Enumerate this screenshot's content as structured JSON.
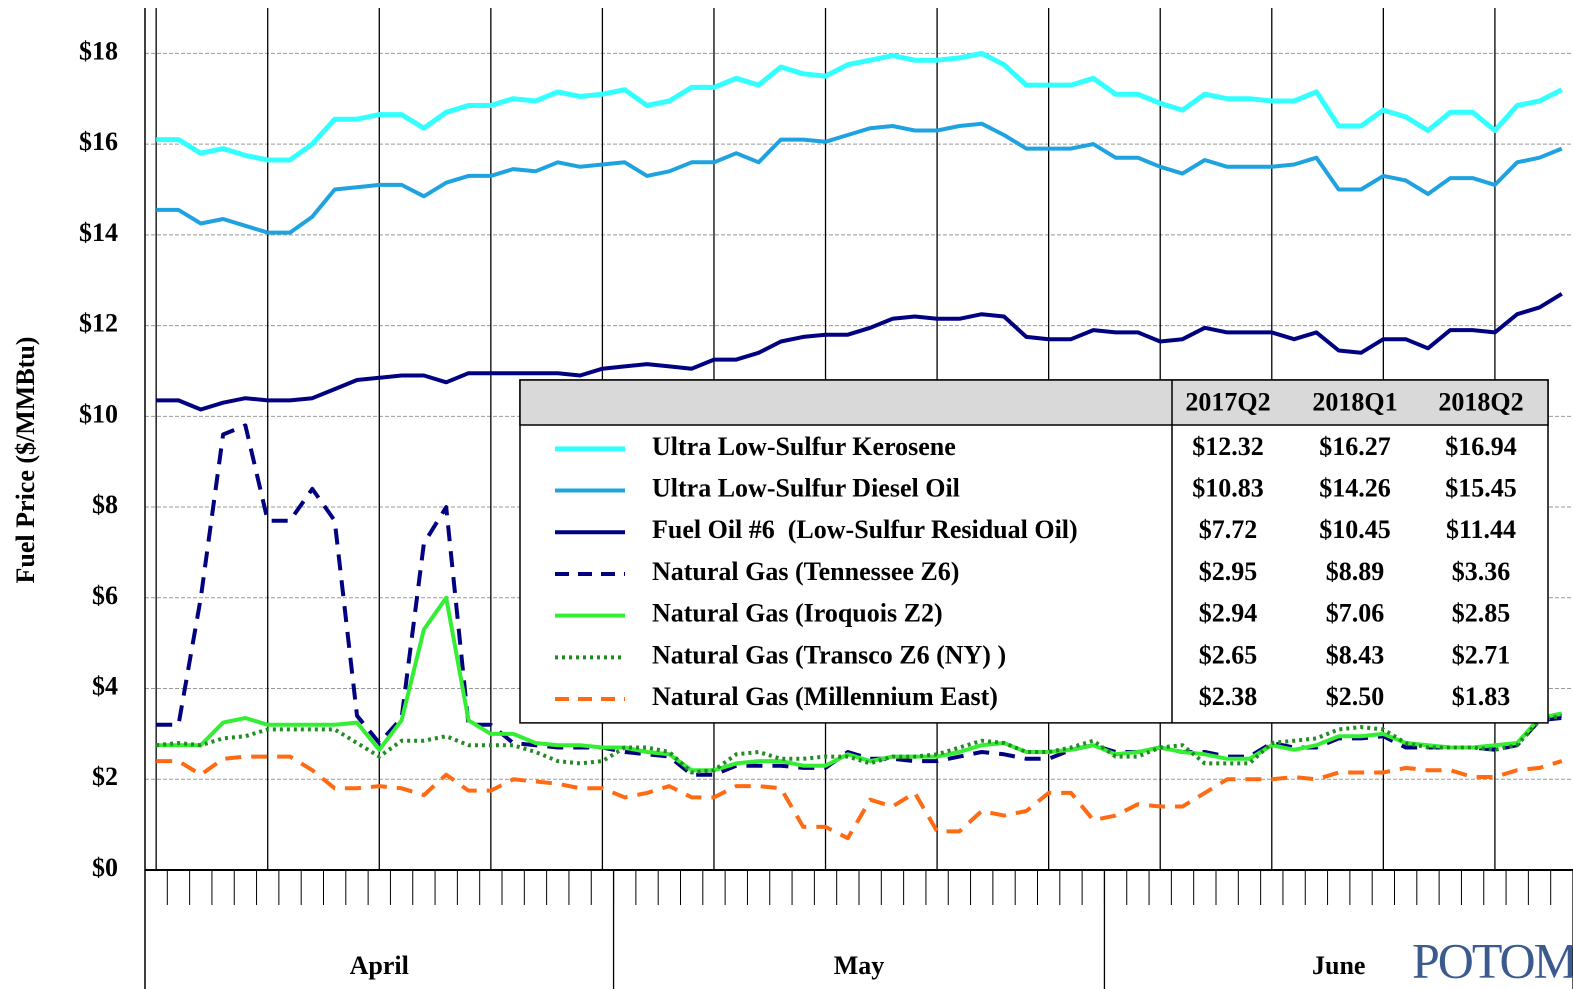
{
  "chart_data": {
    "type": "line",
    "y_label": "Fuel Price ($/MMBtu)",
    "categories": [
      null,
      null,
      null,
      null,
      null,
      null,
      null,
      null,
      null,
      null,
      null,
      null,
      null,
      null,
      null,
      null,
      null,
      null,
      null,
      null,
      null,
      null,
      null,
      null,
      null,
      null,
      null,
      null,
      null,
      null,
      null,
      null,
      null,
      null,
      null,
      null,
      null,
      null,
      null,
      null,
      null,
      null,
      null,
      null,
      null,
      null,
      null,
      null,
      null,
      null,
      null,
      null,
      null,
      null,
      null,
      null,
      null,
      null,
      null,
      null,
      null,
      null,
      null,
      null
    ],
    "month_groups": [
      {
        "label": "April",
        "days": 21
      },
      {
        "label": "May",
        "days": 22
      },
      {
        "label": "June",
        "days": 21
      }
    ],
    "ylim": [
      0,
      19
    ],
    "yticks": [
      {
        "value": 0,
        "label": "$0"
      },
      {
        "value": 2,
        "label": "$2"
      },
      {
        "value": 4,
        "label": "$4"
      },
      {
        "value": 6,
        "label": "$6"
      },
      {
        "value": 8,
        "label": "$8"
      },
      {
        "value": 10,
        "label": "$10"
      },
      {
        "value": 12,
        "label": "$12"
      },
      {
        "value": 14,
        "label": "$14"
      },
      {
        "value": 16,
        "label": "$16"
      },
      {
        "value": 18,
        "label": "$18"
      }
    ],
    "grid": true,
    "series": [
      {
        "name": "Ultra Low-Sulfur Kerosene",
        "color": "#33ffff",
        "line_style": "solid",
        "values": [
          16.1,
          16.1,
          15.8,
          15.9,
          15.75,
          15.65,
          15.65,
          16.0,
          16.55,
          16.55,
          16.65,
          16.65,
          16.35,
          16.7,
          16.85,
          16.85,
          17.0,
          16.95,
          17.15,
          17.05,
          17.1,
          17.2,
          16.85,
          16.95,
          17.25,
          17.25,
          17.45,
          17.3,
          17.7,
          17.55,
          17.5,
          17.75,
          17.85,
          17.95,
          17.85,
          17.85,
          17.9,
          18.0,
          17.75,
          17.3,
          17.3,
          17.3,
          17.45,
          17.1,
          17.1,
          16.9,
          16.75,
          17.1,
          17.0,
          17.0,
          16.95,
          16.95,
          17.15,
          16.4,
          16.4,
          16.75,
          16.6,
          16.3,
          16.7,
          16.7,
          16.3,
          16.85,
          16.95,
          17.2
        ]
      },
      {
        "name": "Ultra Low-Sulfur Diesel Oil",
        "color": "#1fa3e0",
        "line_style": "solid",
        "values": [
          14.55,
          14.55,
          14.25,
          14.35,
          14.2,
          14.05,
          14.05,
          14.4,
          15.0,
          15.05,
          15.1,
          15.1,
          14.85,
          15.15,
          15.3,
          15.3,
          15.45,
          15.4,
          15.6,
          15.5,
          15.55,
          15.6,
          15.3,
          15.4,
          15.6,
          15.6,
          15.8,
          15.6,
          16.1,
          16.1,
          16.05,
          16.2,
          16.35,
          16.4,
          16.3,
          16.3,
          16.4,
          16.45,
          16.2,
          15.9,
          15.9,
          15.9,
          16.0,
          15.7,
          15.7,
          15.5,
          15.35,
          15.65,
          15.5,
          15.5,
          15.5,
          15.55,
          15.7,
          15.0,
          15.0,
          15.3,
          15.2,
          14.9,
          15.25,
          15.25,
          15.1,
          15.6,
          15.7,
          15.9
        ]
      },
      {
        "name": "Fuel Oil #6  (Low-Sulfur Residual Oil)",
        "color": "#000080",
        "line_style": "solid",
        "values": [
          10.35,
          10.35,
          10.15,
          10.3,
          10.4,
          10.35,
          10.35,
          10.4,
          10.6,
          10.8,
          10.85,
          10.9,
          10.9,
          10.75,
          10.95,
          10.95,
          10.95,
          10.95,
          10.95,
          10.9,
          11.05,
          11.1,
          11.15,
          11.1,
          11.05,
          11.25,
          11.25,
          11.4,
          11.65,
          11.75,
          11.8,
          11.8,
          11.95,
          12.15,
          12.2,
          12.15,
          12.15,
          12.25,
          12.2,
          11.75,
          11.7,
          11.7,
          11.9,
          11.85,
          11.85,
          11.65,
          11.7,
          11.95,
          11.85,
          11.85,
          11.85,
          11.7,
          11.85,
          11.45,
          11.4,
          11.7,
          11.7,
          11.5,
          11.9,
          11.9,
          11.85,
          12.25,
          12.4,
          12.7
        ]
      },
      {
        "name": "Natural Gas (Tennessee Z6)",
        "color": "#000080",
        "line_style": "dashed",
        "values": [
          3.2,
          3.2,
          6.0,
          9.6,
          9.8,
          7.7,
          7.7,
          8.4,
          7.7,
          3.4,
          2.8,
          3.35,
          7.2,
          8.0,
          3.2,
          3.2,
          2.8,
          2.75,
          2.7,
          2.7,
          2.7,
          2.6,
          2.55,
          2.5,
          2.1,
          2.1,
          2.3,
          2.3,
          2.3,
          2.25,
          2.25,
          2.6,
          2.45,
          2.45,
          2.4,
          2.4,
          2.5,
          2.6,
          2.55,
          2.45,
          2.45,
          2.65,
          2.75,
          2.6,
          2.6,
          2.7,
          2.6,
          2.6,
          2.5,
          2.5,
          2.8,
          2.7,
          2.7,
          2.9,
          2.9,
          2.95,
          2.7,
          2.7,
          2.7,
          2.7,
          2.65,
          2.75,
          3.3,
          3.35
        ]
      },
      {
        "name": "Natural Gas (Iroquois Z2)",
        "color": "#33ee33",
        "line_style": "solid",
        "values": [
          2.75,
          2.75,
          2.75,
          3.25,
          3.35,
          3.2,
          3.2,
          3.2,
          3.2,
          3.25,
          2.65,
          3.3,
          5.3,
          6.0,
          3.3,
          3.0,
          3.0,
          2.8,
          2.75,
          2.75,
          2.7,
          2.7,
          2.6,
          2.55,
          2.2,
          2.2,
          2.35,
          2.4,
          2.4,
          2.3,
          2.3,
          2.55,
          2.4,
          2.5,
          2.5,
          2.5,
          2.6,
          2.75,
          2.8,
          2.6,
          2.6,
          2.65,
          2.75,
          2.55,
          2.6,
          2.7,
          2.6,
          2.55,
          2.45,
          2.45,
          2.75,
          2.65,
          2.75,
          2.95,
          2.95,
          3.0,
          2.8,
          2.75,
          2.7,
          2.7,
          2.75,
          2.8,
          3.35,
          3.45
        ]
      },
      {
        "name": "Natural Gas (Transco Z6 (NY) )",
        "color": "#228b22",
        "line_style": "dotted",
        "values": [
          2.75,
          2.8,
          2.75,
          2.9,
          2.95,
          3.1,
          3.1,
          3.1,
          3.1,
          2.8,
          2.5,
          2.85,
          2.85,
          2.95,
          2.75,
          2.75,
          2.75,
          2.6,
          2.4,
          2.35,
          2.4,
          2.7,
          2.7,
          2.6,
          2.15,
          2.2,
          2.55,
          2.6,
          2.45,
          2.45,
          2.5,
          2.5,
          2.35,
          2.5,
          2.5,
          2.55,
          2.7,
          2.85,
          2.8,
          2.6,
          2.6,
          2.7,
          2.85,
          2.5,
          2.5,
          2.7,
          2.75,
          2.35,
          2.35,
          2.35,
          2.8,
          2.85,
          2.9,
          3.1,
          3.15,
          3.1,
          2.8,
          2.7,
          2.7,
          2.7,
          2.65,
          2.75,
          3.3,
          3.4
        ]
      },
      {
        "name": "Natural Gas (Millennium East)",
        "color": "#ff6a13",
        "line_style": "dashed",
        "values": [
          2.4,
          2.4,
          2.1,
          2.45,
          2.5,
          2.5,
          2.5,
          2.2,
          1.8,
          1.8,
          1.85,
          1.8,
          1.65,
          2.1,
          1.75,
          1.75,
          2.0,
          1.95,
          1.9,
          1.8,
          1.8,
          1.6,
          1.7,
          1.85,
          1.6,
          1.6,
          1.85,
          1.85,
          1.8,
          0.95,
          0.95,
          0.7,
          1.55,
          1.4,
          1.7,
          0.85,
          0.85,
          1.3,
          1.2,
          1.3,
          1.7,
          1.7,
          1.1,
          1.2,
          1.45,
          1.4,
          1.4,
          1.7,
          2.0,
          2.0,
          2.0,
          2.05,
          2.0,
          2.15,
          2.15,
          2.15,
          2.25,
          2.2,
          2.2,
          2.05,
          2.05,
          2.2,
          2.25,
          2.4
        ]
      }
    ],
    "legend_table": {
      "columns": [
        "2017Q2",
        "2018Q1",
        "2018Q2"
      ],
      "rows": [
        [
          "$12.32",
          "$16.27",
          "$16.94"
        ],
        [
          "$10.83",
          "$14.26",
          "$15.45"
        ],
        [
          "$7.72",
          "$10.45",
          "$11.44"
        ],
        [
          "$2.95",
          "$8.89",
          "$3.36"
        ],
        [
          "$2.94",
          "$7.06",
          "$2.85"
        ],
        [
          "$2.65",
          "$8.43",
          "$2.71"
        ],
        [
          "$2.38",
          "$2.50",
          "$1.83"
        ]
      ]
    },
    "logo": "POTOMAC"
  }
}
